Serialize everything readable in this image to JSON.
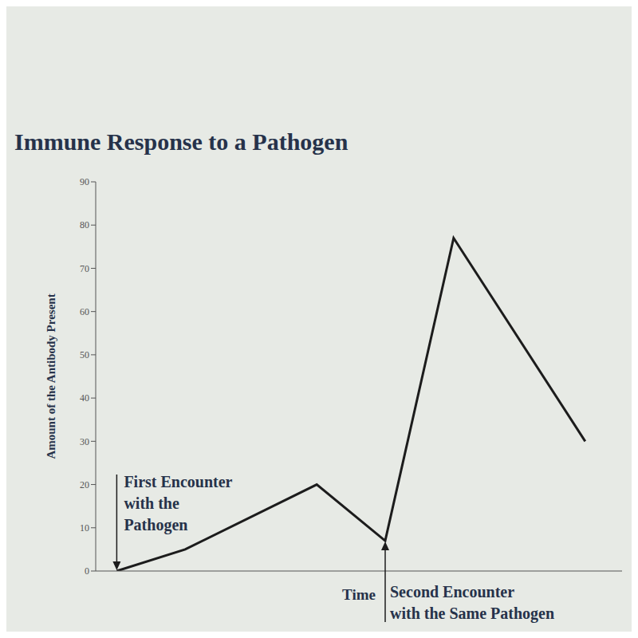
{
  "chart_data": {
    "type": "line",
    "title": "Immune Response to a Pathogen",
    "x_label": "Time",
    "y_label": "Amount of the Antibody Present",
    "x": [
      4,
      17,
      42,
      55,
      68,
      93
    ],
    "values": [
      0,
      5,
      20,
      7,
      77,
      30
    ],
    "color": "#1c1c1c",
    "xlim": [
      0,
      100
    ],
    "ylim": [
      0,
      90
    ],
    "yticks": [
      0,
      10,
      20,
      30,
      40,
      50,
      60,
      70,
      80,
      90
    ],
    "grid": false,
    "tick_labels": "y",
    "marker": "none",
    "line_style": "solid",
    "annotations": [
      {
        "text": [
          "First Encounter",
          "with the",
          "Pathogen"
        ],
        "x": 4,
        "y": 0
      },
      {
        "text": [
          "Second Encounter",
          "with the Same Pathogen"
        ],
        "x": 55,
        "y": 7
      }
    ]
  }
}
